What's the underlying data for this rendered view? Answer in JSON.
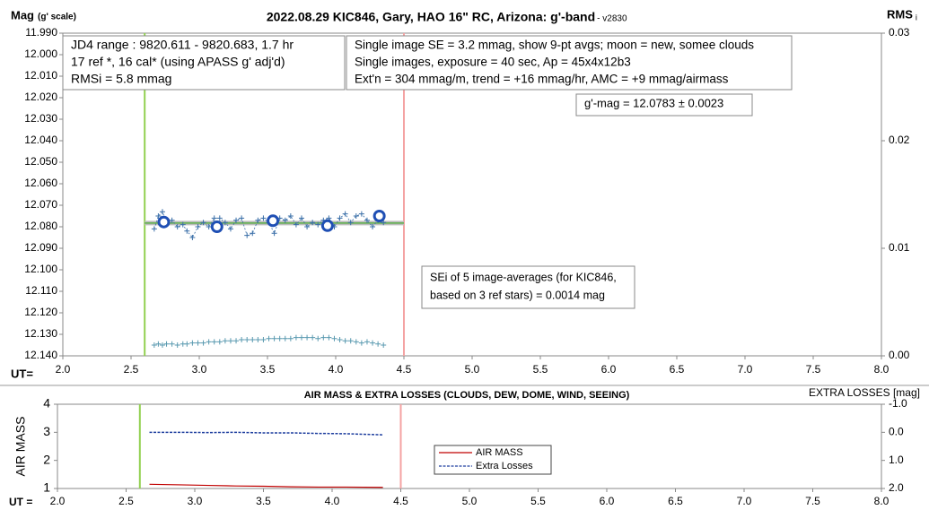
{
  "chart_data": [
    {
      "type": "scatter",
      "title": "2022.08.29 KIC846, Gary, HAO 16\" RC, Arizona: g'-band",
      "title_suffix": " - v2830",
      "ylabel": "Mag",
      "ylabel_note": "(g' scale)",
      "y2label": "RMS",
      "y2label_sub": "i",
      "xlabel": "UT=",
      "xlim": [
        2.0,
        8.0
      ],
      "xticks": [
        {
          "value": 2.0,
          "label": "2.0"
        },
        {
          "value": 2.5,
          "label": "2.5"
        },
        {
          "value": 3.0,
          "label": "3.0"
        },
        {
          "value": 3.5,
          "label": "3.5"
        },
        {
          "value": 4.0,
          "label": "4.0"
        },
        {
          "value": 4.5,
          "label": "4.5"
        },
        {
          "value": 5.0,
          "label": "5.0"
        },
        {
          "value": 5.5,
          "label": "5.5"
        },
        {
          "value": 6.0,
          "label": "6.0"
        },
        {
          "value": 6.5,
          "label": "6.5"
        },
        {
          "value": 7.0,
          "label": "7.0"
        },
        {
          "value": 7.5,
          "label": "7.5"
        },
        {
          "value": 8.0,
          "label": "8.0"
        }
      ],
      "ylim": [
        11.99,
        12.14
      ],
      "y_reversed": true,
      "yticks": [
        {
          "value": 11.99,
          "label": "11.990"
        },
        {
          "value": 12.0,
          "label": "12.000"
        },
        {
          "value": 12.01,
          "label": "12.010"
        },
        {
          "value": 12.02,
          "label": "12.020"
        },
        {
          "value": 12.03,
          "label": "12.030"
        },
        {
          "value": 12.04,
          "label": "12.040"
        },
        {
          "value": 12.05,
          "label": "12.050"
        },
        {
          "value": 12.06,
          "label": "12.060"
        },
        {
          "value": 12.07,
          "label": "12.070"
        },
        {
          "value": 12.08,
          "label": "12.080"
        },
        {
          "value": 12.09,
          "label": "12.090"
        },
        {
          "value": 12.1,
          "label": "12.100"
        },
        {
          "value": 12.11,
          "label": "12.110"
        },
        {
          "value": 12.12,
          "label": "12.120"
        },
        {
          "value": 12.13,
          "label": "12.130"
        },
        {
          "value": 12.14,
          "label": "12.140"
        }
      ],
      "y2lim": [
        0,
        0.03
      ],
      "y2ticks": [
        {
          "value": 0,
          "label": "0.00"
        },
        {
          "value": 0.01,
          "label": "0.01"
        },
        {
          "value": 0.02,
          "label": "0.02"
        },
        {
          "value": 0.03,
          "label": "0.03"
        }
      ],
      "vlines": [
        {
          "x": 2.6,
          "color": "#92d050"
        },
        {
          "x": 4.5,
          "color": "#f4a3a3"
        }
      ],
      "mean_mag": 12.0783,
      "series": [
        {
          "color": "#3a6fa8",
          "x": [
            2.67,
            2.7,
            2.73,
            2.76,
            2.8,
            2.84,
            2.88,
            2.91,
            2.95,
            2.99,
            3.03,
            3.07,
            3.11,
            3.15,
            3.19,
            3.23,
            3.27,
            3.31,
            3.35,
            3.39,
            3.43,
            3.47,
            3.51,
            3.55,
            3.59,
            3.63,
            3.67,
            3.71,
            3.75,
            3.79,
            3.83,
            3.87,
            3.91,
            3.95,
            3.99,
            4.03,
            4.07,
            4.11,
            4.15,
            4.19,
            4.23,
            4.27,
            4.31,
            4.35
          ],
          "values": [
            12.081,
            12.075,
            12.073,
            12.078,
            12.077,
            12.08,
            12.079,
            12.082,
            12.085,
            12.08,
            12.078,
            12.08,
            12.076,
            12.076,
            12.078,
            12.081,
            12.077,
            12.076,
            12.084,
            12.083,
            12.077,
            12.076,
            12.078,
            12.083,
            12.076,
            12.077,
            12.075,
            12.079,
            12.076,
            12.08,
            12.078,
            12.079,
            12.077,
            12.076,
            12.08,
            12.076,
            12.074,
            12.078,
            12.075,
            12.074,
            12.077,
            12.08,
            12.077,
            12.078
          ]
        },
        {
          "color": "#1f4fb4",
          "x": [
            2.74,
            3.13,
            3.54,
            3.94,
            4.32
          ],
          "values": [
            12.0778,
            12.08,
            12.0772,
            12.0795,
            12.075
          ]
        },
        {
          "color": "#5a9ab0",
          "axis": "y2",
          "x": [
            2.67,
            2.7,
            2.73,
            2.76,
            2.8,
            2.84,
            2.88,
            2.91,
            2.95,
            2.99,
            3.03,
            3.07,
            3.11,
            3.15,
            3.19,
            3.23,
            3.27,
            3.31,
            3.35,
            3.39,
            3.43,
            3.47,
            3.51,
            3.55,
            3.59,
            3.63,
            3.67,
            3.71,
            3.75,
            3.79,
            3.83,
            3.87,
            3.91,
            3.95,
            3.99,
            4.03,
            4.07,
            4.11,
            4.15,
            4.19,
            4.23,
            4.27,
            4.31,
            4.35
          ],
          "values": [
            0.001,
            0.0011,
            0.001,
            0.0011,
            0.0011,
            0.001,
            0.0011,
            0.0011,
            0.0012,
            0.0012,
            0.0012,
            0.0013,
            0.0013,
            0.0013,
            0.0014,
            0.0014,
            0.0014,
            0.0015,
            0.0015,
            0.0015,
            0.0015,
            0.0015,
            0.0016,
            0.0016,
            0.0016,
            0.0016,
            0.0016,
            0.0017,
            0.0017,
            0.0017,
            0.0017,
            0.0016,
            0.0017,
            0.0017,
            0.0016,
            0.0015,
            0.0014,
            0.0014,
            0.0013,
            0.0012,
            0.0013,
            0.0012,
            0.0011,
            0.001
          ]
        }
      ],
      "annotations": [
        {
          "lines": [
            "JD4 range : 9820.611 - 9820.683,  1.7 hr",
            "17 ref *, 16 cal* (using APASS g' adj'd)",
            "RMSi = 5.8 mmag"
          ]
        },
        {
          "lines": [
            "Single image SE = 3.2 mmag, show  9-pt avgs; moon = new, somee clouds",
            "Single images, exposure = 40 sec, Ap = 45x4x12b3",
            "Ext'n = 304 mmag/m, trend = +16 mmag/hr, AMC = +9 mmag/airmass"
          ]
        },
        {
          "lines": [
            "g'-mag = 12.0783 ± 0.0023"
          ]
        },
        {
          "lines": [
            "SEi of 5 image-averages (for KIC846,",
            "based on 3 ref stars) = 0.0014 mag"
          ]
        }
      ]
    },
    {
      "type": "line",
      "title": "AIR MASS & EXTRA LOSSES (CLOUDS, DEW, DOME, WIND, SEEING)",
      "ylabel": "AIR MASS",
      "y2label": "EXTRA LOSSES [mag]",
      "xlabel": "UT =",
      "xlim": [
        2.0,
        8.0
      ],
      "xticks": [
        {
          "value": 2.0,
          "label": "2.0"
        },
        {
          "value": 2.5,
          "label": "2.5"
        },
        {
          "value": 3.0,
          "label": "3.0"
        },
        {
          "value": 3.5,
          "label": "3.5"
        },
        {
          "value": 4.0,
          "label": "4.0"
        },
        {
          "value": 4.5,
          "label": "4.5"
        },
        {
          "value": 5.0,
          "label": "5.0"
        },
        {
          "value": 5.5,
          "label": "5.5"
        },
        {
          "value": 6.0,
          "label": "6.0"
        },
        {
          "value": 6.5,
          "label": "6.5"
        },
        {
          "value": 7.0,
          "label": "7.0"
        },
        {
          "value": 7.5,
          "label": "7.5"
        },
        {
          "value": 8.0,
          "label": "8.0"
        }
      ],
      "ylim": [
        1,
        4
      ],
      "yticks": [
        1,
        2,
        3,
        4
      ],
      "y2lim": [
        -1.0,
        2.0
      ],
      "y2_reversed": true,
      "y2ticks": [
        {
          "value": -1.0,
          "label": "-1.0"
        },
        {
          "value": 0.0,
          "label": "0.0"
        },
        {
          "value": 1.0,
          "label": "1.0"
        },
        {
          "value": 2.0,
          "label": "2.0"
        }
      ],
      "vlines": [
        {
          "x": 2.6,
          "color": "#92d050"
        },
        {
          "x": 4.5,
          "color": "#f4a3a3"
        }
      ],
      "series": [
        {
          "name": "AIR MASS",
          "color": "#c00000",
          "x": [
            2.67,
            2.9,
            3.1,
            3.3,
            3.5,
            3.7,
            3.9,
            4.1,
            4.37
          ],
          "values": [
            1.15,
            1.13,
            1.11,
            1.09,
            1.08,
            1.06,
            1.05,
            1.05,
            1.04
          ]
        },
        {
          "name": "Extra Losses",
          "color": "#1f3f9f",
          "axis": "y2",
          "dashed": true,
          "x": [
            2.67,
            2.9,
            3.1,
            3.3,
            3.5,
            3.7,
            3.9,
            4.1,
            4.37
          ],
          "values": [
            0.0,
            0.0,
            0.01,
            0.0,
            0.02,
            0.02,
            0.04,
            0.05,
            0.09
          ]
        }
      ]
    }
  ]
}
